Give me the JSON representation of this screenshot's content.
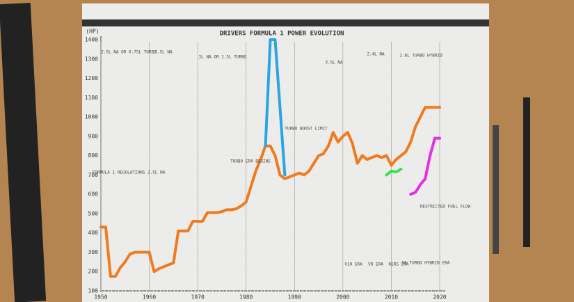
{
  "chart_data": {
    "type": "line",
    "title": "DRIVERS FORMULA 1 POWER EVOLUTION",
    "y_label": "(HP)",
    "xlim": [
      1950,
      2020
    ],
    "xticks": [
      1950,
      1960,
      1970,
      1980,
      1990,
      2000,
      2010,
      2020
    ],
    "ylim": [
      100,
      1400
    ],
    "yticks": [
      100,
      200,
      300,
      400,
      500,
      600,
      700,
      800,
      900,
      1000,
      1100,
      1200,
      1300,
      1400
    ],
    "grid": true,
    "series": [
      {
        "color": "#f07a1e",
        "x": [
          1950,
          1951,
          1952,
          1953,
          1954,
          1955,
          1956,
          1957,
          1958,
          1959,
          1960,
          1961,
          1962,
          1963,
          1964,
          1965,
          1966,
          1967,
          1968,
          1969,
          1970,
          1971,
          1972,
          1973,
          1974,
          1975,
          1976,
          1977,
          1978,
          1979,
          1980,
          1981,
          1982,
          1983,
          1984,
          1985,
          1986,
          1987,
          1988,
          1989,
          1990,
          1991,
          1992,
          1993,
          1994,
          1995,
          1996,
          1997,
          1998,
          1999,
          2000,
          2001,
          2002,
          2003,
          2004,
          2005,
          2006,
          2007,
          2008,
          2009,
          2010,
          2011,
          2012,
          2013,
          2014,
          2015,
          2016,
          2017,
          2018,
          2019,
          2020
        ],
        "values": [
          430,
          430,
          175,
          175,
          220,
          250,
          290,
          300,
          300,
          300,
          300,
          200,
          215,
          225,
          235,
          245,
          410,
          410,
          410,
          460,
          460,
          460,
          505,
          505,
          505,
          510,
          520,
          520,
          525,
          540,
          560,
          640,
          720,
          780,
          850,
          850,
          800,
          700,
          680,
          690,
          700,
          710,
          700,
          720,
          760,
          800,
          810,
          850,
          920,
          870,
          900,
          920,
          860,
          760,
          800,
          780,
          790,
          800,
          790,
          800,
          750,
          780,
          800,
          820,
          870,
          950,
          1000,
          1050,
          1050,
          1050,
          1050
        ]
      },
      {
        "color": "#2aa5e0",
        "x": [
          1984,
          1985,
          1986,
          1988
        ],
        "values": [
          850,
          1400,
          1400,
          700
        ]
      },
      {
        "color": "#3be052",
        "x": [
          2009,
          2010,
          2011,
          2012
        ],
        "values": [
          700,
          720,
          715,
          730
        ]
      },
      {
        "color": "#e62ee6",
        "x": [
          2014,
          2015,
          2016,
          2017,
          2018,
          2019,
          2020
        ],
        "values": [
          600,
          610,
          650,
          680,
          800,
          890,
          890
        ]
      }
    ],
    "annotations": [
      "2.5L NA OR 0.75L TURBO",
      "1.5L NA",
      "3L NA OR 1.5L TURBO",
      "3.5L NA",
      "2.4L NA",
      "1.6L TURBO HYBRID",
      "TURBO ERA BEGINS",
      "FORMULA 1 REGULATIONS 2.5L NA",
      "V10 ERA",
      "V8 ERA",
      "KERS ERA",
      "V6 TURBO HYBRID ERA",
      "TURBO BOOST LIMIT",
      "RESTRICTED FUEL FLOW"
    ]
  }
}
